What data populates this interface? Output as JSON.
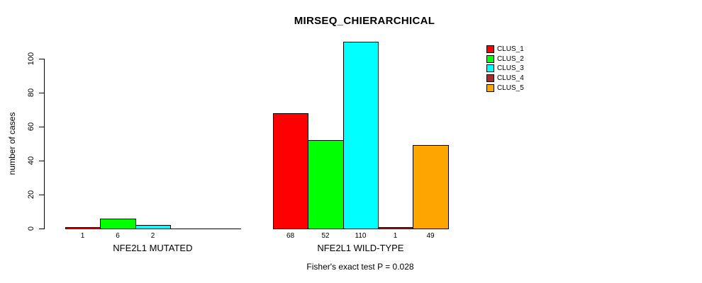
{
  "chart_data": {
    "type": "bar",
    "title": "MIRSEQ_CHIERARCHICAL",
    "ylabel": "number of cases",
    "xlabel": "",
    "yticks": [
      0,
      20,
      40,
      60,
      80,
      100
    ],
    "ylim": [
      0,
      110
    ],
    "grid": false,
    "legend_position": "top-right",
    "categories": [
      "NFE2L1 MUTATED",
      "NFE2L1 WILD-TYPE"
    ],
    "groups": [
      {
        "label": "NFE2L1 MUTATED",
        "values": [
          1,
          6,
          2,
          0,
          0
        ]
      },
      {
        "label": "NFE2L1 WILD-TYPE",
        "values": [
          68,
          52,
          110,
          1,
          49
        ]
      }
    ],
    "series": [
      {
        "name": "CLUS_1",
        "color": "#ff0000"
      },
      {
        "name": "CLUS_2",
        "color": "#00ff00"
      },
      {
        "name": "CLUS_3",
        "color": "#00ffff"
      },
      {
        "name": "CLUS_4",
        "color": "#a52a2a"
      },
      {
        "name": "CLUS_5",
        "color": "#ffa500"
      }
    ],
    "bar_labels": [
      [
        "1",
        "6",
        "2",
        "",
        ""
      ],
      [
        "68",
        "52",
        "110",
        "1",
        "49"
      ]
    ],
    "annotation": "Fisher's exact test P = 0.028"
  }
}
